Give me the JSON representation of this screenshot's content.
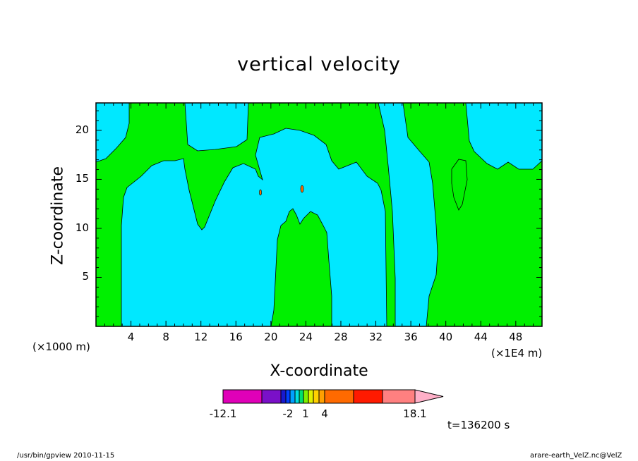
{
  "chart_data": {
    "type": "heatmap",
    "title": "vertical velocity",
    "xlabel": "X-coordinate",
    "ylabel": "Z-coordinate",
    "x_scale_note": "(×1000 m)",
    "x_unit_note": "(×1E4 m)",
    "xlim": [
      0,
      51
    ],
    "ylim": [
      0,
      22.8
    ],
    "x_ticks": [
      4,
      8,
      12,
      16,
      20,
      24,
      28,
      32,
      36,
      40,
      44,
      48
    ],
    "y_ticks": [
      5,
      10,
      15,
      20
    ],
    "levels": [
      "-12.1",
      "-2",
      "1",
      "4",
      "18.1"
    ],
    "colorbar_colors": [
      "#e000b8",
      "#7a10c8",
      "#1818d0",
      "#0040ff",
      "#00a0ff",
      "#00e0e0",
      "#00e070",
      "#80f000",
      "#e0f000",
      "#ffd000",
      "#ffa000",
      "#ff6a00",
      "#ff1a00",
      "#ff8080"
    ],
    "colorbar_arrow_color": "#ffb0c8",
    "region_colors": {
      "positive": "#00f000",
      "negative": "#00e8ff"
    },
    "time_label": "t=136200 s"
  },
  "footer": {
    "left": "/usr/bin/gpview   2010-11-15",
    "right": "arare-earth_VelZ.nc@VelZ"
  }
}
